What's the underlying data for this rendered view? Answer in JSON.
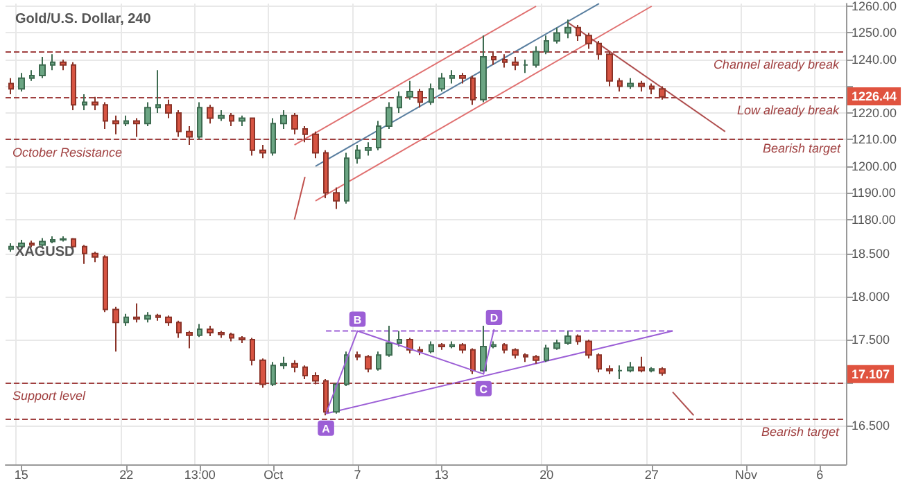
{
  "chart_data": [
    {
      "type": "candlestick",
      "title": "Gold/U.S. Dollar, 240",
      "tick_labels": "y",
      "grid": true,
      "categories": [
        null,
        null,
        null,
        null,
        null,
        null,
        null,
        null,
        null,
        null,
        null,
        null,
        null,
        null,
        null,
        null,
        null,
        null,
        null,
        null,
        null,
        null,
        null,
        null,
        null,
        null,
        null,
        null,
        null,
        null,
        null,
        null,
        null,
        null,
        null,
        null,
        null,
        null,
        null,
        null,
        null,
        null,
        null,
        null,
        null,
        null,
        null,
        null,
        null,
        null,
        null,
        null,
        null,
        null,
        null,
        null,
        null,
        null,
        null,
        null,
        null,
        null,
        null,
        null,
        null,
        null,
        null,
        null,
        null,
        null,
        null,
        null,
        null,
        null,
        null,
        null,
        null,
        null,
        null,
        null
      ],
      "ylim": [
        1175,
        1261
      ],
      "yticks": [
        {
          "value": 1180,
          "label": "1180.00"
        },
        {
          "value": 1190,
          "label": "1190.00"
        },
        {
          "value": 1200,
          "label": "1200.00"
        },
        {
          "value": 1210,
          "label": "1210.00"
        },
        {
          "value": 1220,
          "label": "1220.00"
        },
        {
          "value": 1230,
          "label": null
        },
        {
          "value": 1240,
          "label": "1240.00"
        },
        {
          "value": 1250,
          "label": "1250.00"
        },
        {
          "value": 1260,
          "label": "1260.00"
        }
      ],
      "ohlc": [
        [
          1231,
          1233,
          1227,
          1229
        ],
        [
          1229,
          1235,
          1228,
          1233
        ],
        [
          1233,
          1236,
          1232,
          1234
        ],
        [
          1234,
          1241,
          1233,
          1238
        ],
        [
          1238,
          1242,
          1236,
          1239
        ],
        [
          1239,
          1240,
          1236,
          1238
        ],
        [
          1238,
          1239,
          1221,
          1223
        ],
        [
          1223,
          1227,
          1221,
          1224
        ],
        [
          1224,
          1226,
          1221,
          1223
        ],
        [
          1223,
          1224,
          1214,
          1217
        ],
        [
          1217,
          1219,
          1212,
          1216
        ],
        [
          1216,
          1219,
          1215,
          1217
        ],
        [
          1217,
          1218,
          1211,
          1216
        ],
        [
          1216,
          1224,
          1215,
          1222
        ],
        [
          1222,
          1236,
          1220,
          1223
        ],
        [
          1223,
          1225,
          1218,
          1220
        ],
        [
          1220,
          1221,
          1211,
          1213
        ],
        [
          1213,
          1215,
          1208,
          1211
        ],
        [
          1211,
          1224,
          1210,
          1222
        ],
        [
          1222,
          1223,
          1216,
          1218
        ],
        [
          1218,
          1221,
          1217,
          1219
        ],
        [
          1219,
          1220,
          1215,
          1217
        ],
        [
          1217,
          1219,
          1215,
          1218
        ],
        [
          1218,
          1218,
          1204,
          1206
        ],
        [
          1206,
          1208,
          1203,
          1205
        ],
        [
          1205,
          1218,
          1204,
          1216
        ],
        [
          1216,
          1221,
          1214,
          1219
        ],
        [
          1219,
          1220,
          1212,
          1214
        ],
        [
          1214,
          1215,
          1209,
          1212
        ],
        [
          1212,
          1213,
          1203,
          1205
        ],
        [
          1205,
          1206,
          1188,
          1190
        ],
        [
          1190,
          1192,
          1184,
          1187
        ],
        [
          1187,
          1205,
          1186,
          1203
        ],
        [
          1203,
          1208,
          1201,
          1206
        ],
        [
          1206,
          1209,
          1204,
          1207
        ],
        [
          1207,
          1217,
          1206,
          1215
        ],
        [
          1215,
          1224,
          1214,
          1222
        ],
        [
          1222,
          1228,
          1220,
          1226
        ],
        [
          1226,
          1232,
          1225,
          1228
        ],
        [
          1228,
          1229,
          1222,
          1224
        ],
        [
          1224,
          1231,
          1223,
          1229
        ],
        [
          1229,
          1235,
          1228,
          1233
        ],
        [
          1233,
          1236,
          1231,
          1234
        ],
        [
          1234,
          1235,
          1231,
          1233
        ],
        [
          1233,
          1234,
          1223,
          1225
        ],
        [
          1225,
          1249,
          1224,
          1241
        ],
        [
          1241,
          1243,
          1238,
          1240
        ],
        [
          1240,
          1242,
          1237,
          1239
        ],
        [
          1239,
          1241,
          1236,
          1238
        ],
        [
          1238,
          1240,
          1235,
          1238
        ],
        [
          1238,
          1245,
          1237,
          1243
        ],
        [
          1243,
          1249,
          1242,
          1247
        ],
        [
          1247,
          1252,
          1246,
          1250
        ],
        [
          1250,
          1255,
          1248,
          1252
        ],
        [
          1252,
          1253,
          1247,
          1249
        ],
        [
          1249,
          1250,
          1244,
          1246
        ],
        [
          1246,
          1247,
          1240,
          1242
        ],
        [
          1242,
          1243,
          1230,
          1232
        ],
        [
          1232,
          1233,
          1228,
          1230
        ],
        [
          1230,
          1233,
          1229,
          1231
        ],
        [
          1231,
          1232,
          1228,
          1230
        ],
        [
          1230,
          1231,
          1227,
          1229
        ],
        [
          1229,
          1230,
          1225,
          1226
        ],
        null,
        null,
        null,
        null,
        null,
        null,
        null,
        null,
        null,
        null,
        null,
        null,
        null,
        null,
        null,
        null,
        null
      ],
      "series": [
        {
          "type": "line",
          "color": "#e07070",
          "values": [
            null,
            null,
            null,
            null,
            null,
            null,
            null,
            null,
            null,
            null,
            null,
            null,
            null,
            null,
            null,
            null,
            null,
            null,
            null,
            null,
            null,
            null,
            null,
            null,
            null,
            null,
            null,
            1208,
            null,
            null,
            null,
            null,
            null,
            null,
            null,
            null,
            null,
            null,
            null,
            null,
            null,
            null,
            null,
            null,
            null,
            null,
            null,
            null,
            null,
            null,
            1260,
            null,
            null,
            null,
            null,
            null,
            null,
            null,
            null,
            null,
            null,
            null,
            null,
            null,
            null,
            null,
            null,
            null,
            null,
            null,
            null,
            null,
            null,
            null,
            null,
            null,
            null,
            null,
            null,
            null
          ]
        },
        {
          "type": "line",
          "color": "#e07070",
          "values": [
            null,
            null,
            null,
            null,
            null,
            null,
            null,
            null,
            null,
            null,
            null,
            null,
            null,
            null,
            null,
            null,
            null,
            null,
            null,
            null,
            null,
            null,
            null,
            null,
            null,
            null,
            null,
            null,
            null,
            1187,
            null,
            null,
            null,
            null,
            null,
            null,
            null,
            null,
            null,
            null,
            null,
            null,
            null,
            null,
            null,
            null,
            null,
            null,
            null,
            null,
            null,
            null,
            null,
            null,
            null,
            null,
            null,
            null,
            null,
            null,
            null,
            1260,
            null,
            null,
            null,
            null,
            null,
            null,
            null,
            null,
            null,
            null,
            null,
            null,
            null,
            null,
            null,
            null,
            null,
            null
          ]
        },
        {
          "type": "line",
          "color": "#5a7fa0",
          "values": [
            null,
            null,
            null,
            null,
            null,
            null,
            null,
            null,
            null,
            null,
            null,
            null,
            null,
            null,
            null,
            null,
            null,
            null,
            null,
            null,
            null,
            null,
            null,
            null,
            null,
            null,
            null,
            null,
            null,
            1200,
            null,
            null,
            null,
            null,
            null,
            null,
            null,
            null,
            null,
            null,
            null,
            null,
            null,
            null,
            null,
            null,
            null,
            null,
            null,
            null,
            null,
            null,
            null,
            null,
            null,
            null,
            1261,
            null,
            null,
            null,
            null,
            null,
            null,
            null,
            null,
            null,
            null,
            null,
            null,
            null,
            null,
            null,
            null,
            null,
            null,
            null,
            null,
            null,
            null,
            null
          ]
        },
        {
          "type": "line",
          "color": "#c0504d",
          "values": [
            null,
            null,
            null,
            null,
            null,
            null,
            null,
            null,
            null,
            null,
            null,
            null,
            null,
            null,
            null,
            null,
            null,
            null,
            null,
            null,
            null,
            null,
            null,
            null,
            null,
            null,
            null,
            1180,
            1196,
            null,
            null,
            null,
            null,
            null,
            null,
            null,
            null,
            null,
            null,
            null,
            null,
            null,
            null,
            null,
            null,
            null,
            null,
            null,
            null,
            null,
            null,
            null,
            null,
            null,
            null,
            null,
            null,
            null,
            null,
            null,
            null,
            null,
            null,
            null,
            null,
            null,
            null,
            null,
            null,
            null,
            null,
            null,
            null,
            null,
            null,
            null,
            null,
            null,
            null,
            null
          ]
        },
        {
          "type": "line",
          "color": "#b05050",
          "values": [
            null,
            null,
            null,
            null,
            null,
            null,
            null,
            null,
            null,
            null,
            null,
            null,
            null,
            null,
            null,
            null,
            null,
            null,
            null,
            null,
            null,
            null,
            null,
            null,
            null,
            null,
            null,
            null,
            null,
            null,
            null,
            null,
            null,
            null,
            null,
            null,
            null,
            null,
            null,
            null,
            null,
            null,
            null,
            null,
            null,
            null,
            null,
            null,
            null,
            null,
            null,
            null,
            null,
            1254,
            null,
            null,
            null,
            null,
            null,
            null,
            null,
            null,
            null,
            null,
            null,
            null,
            null,
            null,
            1213,
            null,
            null,
            null,
            null,
            null,
            null,
            null,
            null,
            null,
            null,
            null
          ]
        }
      ],
      "ref_lines": [
        {
          "axis": "y",
          "value": 1210,
          "label": "October Resistance",
          "color": "#a04040",
          "line_style": "dashed"
        },
        {
          "axis": "y",
          "value": 1243,
          "label": "Channel already break",
          "color": "#a04040",
          "line_style": "dashed"
        },
        {
          "axis": "y",
          "value": 1226,
          "label": "Low already break",
          "color": "#a04040",
          "line_style": "dashed"
        }
      ],
      "annotations": [
        {
          "text": "1226.44",
          "y": 1226.44
        },
        {
          "text": "Bearish target",
          "y": 1210
        }
      ]
    },
    {
      "type": "candlestick",
      "title": "XAGUSD",
      "grid": true,
      "categories": [
        null,
        "15",
        null,
        null,
        null,
        null,
        null,
        null,
        null,
        null,
        null,
        "22",
        null,
        null,
        null,
        null,
        null,
        null,
        "13:00",
        null,
        null,
        null,
        null,
        null,
        null,
        "Oct",
        null,
        null,
        null,
        null,
        null,
        null,
        null,
        "7",
        null,
        null,
        null,
        null,
        null,
        null,
        null,
        "13",
        null,
        null,
        null,
        null,
        null,
        null,
        null,
        null,
        null,
        "20",
        null,
        null,
        null,
        null,
        null,
        null,
        null,
        null,
        null,
        "27",
        null,
        null,
        null,
        null,
        null,
        null,
        null,
        null,
        "Nov",
        null,
        null,
        null,
        null,
        null,
        null,
        "6",
        null,
        null
      ],
      "ylim": [
        16.05,
        18.74
      ],
      "yticks": [
        {
          "value": 16.5,
          "label": "16.500"
        },
        {
          "value": 17,
          "label": null
        },
        {
          "value": 17.5,
          "label": "17.500"
        },
        {
          "value": 18,
          "label": "18.000"
        },
        {
          "value": 18.5,
          "label": "18.500"
        }
      ],
      "ohlc": [
        [
          18.55,
          18.62,
          18.52,
          18.58
        ],
        [
          18.58,
          18.66,
          18.56,
          18.62
        ],
        [
          18.62,
          18.65,
          18.57,
          18.6
        ],
        [
          18.6,
          18.68,
          18.58,
          18.64
        ],
        [
          18.64,
          18.7,
          18.62,
          18.66
        ],
        [
          18.66,
          18.7,
          18.64,
          18.67
        ],
        [
          18.67,
          18.68,
          18.54,
          18.58
        ],
        [
          18.58,
          18.6,
          18.38,
          18.5
        ],
        [
          18.5,
          18.52,
          18.4,
          18.46
        ],
        [
          18.46,
          18.48,
          17.82,
          17.85
        ],
        [
          17.85,
          17.88,
          17.36,
          17.7
        ],
        [
          17.7,
          17.8,
          17.66,
          17.76
        ],
        [
          17.76,
          17.92,
          17.7,
          17.74
        ],
        [
          17.74,
          17.82,
          17.7,
          17.78
        ],
        [
          17.78,
          17.8,
          17.72,
          17.76
        ],
        [
          17.76,
          17.78,
          17.66,
          17.7
        ],
        [
          17.7,
          17.72,
          17.52,
          17.58
        ],
        [
          17.58,
          17.6,
          17.4,
          17.55
        ],
        [
          17.55,
          17.68,
          17.53,
          17.62
        ],
        [
          17.62,
          17.66,
          17.54,
          17.58
        ],
        [
          17.58,
          17.6,
          17.52,
          17.56
        ],
        [
          17.56,
          17.58,
          17.48,
          17.52
        ],
        [
          17.52,
          17.54,
          17.46,
          17.5
        ],
        [
          17.5,
          17.52,
          17.2,
          17.26
        ],
        [
          17.26,
          17.28,
          16.94,
          16.98
        ],
        [
          16.98,
          17.24,
          16.96,
          17.2
        ],
        [
          17.2,
          17.3,
          17.16,
          17.22
        ],
        [
          17.22,
          17.26,
          17.12,
          17.18
        ],
        [
          17.18,
          17.2,
          17.04,
          17.08
        ],
        [
          17.08,
          17.12,
          16.98,
          17.02
        ],
        [
          17.02,
          17.04,
          16.62,
          16.66
        ],
        [
          16.66,
          17.0,
          16.64,
          16.98
        ],
        [
          16.98,
          17.36,
          16.96,
          17.32
        ],
        [
          17.32,
          17.36,
          17.26,
          17.3
        ],
        [
          17.3,
          17.32,
          17.12,
          17.16
        ],
        [
          17.16,
          17.36,
          17.14,
          17.32
        ],
        [
          17.32,
          17.66,
          17.3,
          17.46
        ],
        [
          17.46,
          17.6,
          17.42,
          17.5
        ],
        [
          17.5,
          17.52,
          17.34,
          17.38
        ],
        [
          17.38,
          17.42,
          17.32,
          17.36
        ],
        [
          17.36,
          17.48,
          17.34,
          17.44
        ],
        [
          17.44,
          17.46,
          17.38,
          17.42
        ],
        [
          17.42,
          17.48,
          17.4,
          17.44
        ],
        [
          17.44,
          17.46,
          17.34,
          17.38
        ],
        [
          17.38,
          17.4,
          17.1,
          17.14
        ],
        [
          17.14,
          17.66,
          17.12,
          17.42
        ],
        [
          17.42,
          17.48,
          17.4,
          17.44
        ],
        [
          17.44,
          17.46,
          17.34,
          17.38
        ],
        [
          17.38,
          17.4,
          17.28,
          17.32
        ],
        [
          17.32,
          17.34,
          17.24,
          17.3
        ],
        [
          17.3,
          17.32,
          17.22,
          17.26
        ],
        [
          17.26,
          17.44,
          17.24,
          17.4
        ],
        [
          17.4,
          17.5,
          17.38,
          17.46
        ],
        [
          17.46,
          17.6,
          17.44,
          17.54
        ],
        [
          17.54,
          17.56,
          17.44,
          17.48
        ],
        [
          17.48,
          17.5,
          17.28,
          17.32
        ],
        [
          17.32,
          17.34,
          17.12,
          17.16
        ],
        [
          17.16,
          17.2,
          17.1,
          17.14
        ],
        [
          17.14,
          17.2,
          17.04,
          17.14
        ],
        [
          17.14,
          17.24,
          17.12,
          17.18
        ],
        [
          17.18,
          17.3,
          17.12,
          17.14
        ],
        [
          17.14,
          17.18,
          17.12,
          17.16
        ],
        [
          17.16,
          17.18,
          17.08,
          17.11
        ],
        null,
        null,
        null,
        null,
        null,
        null,
        null,
        null,
        null,
        null,
        null,
        null,
        null,
        null,
        null,
        null,
        null
      ],
      "series": [
        {
          "type": "line",
          "color": "#9c5fd6",
          "line_style": "dashed",
          "values": [
            null,
            null,
            null,
            null,
            null,
            null,
            null,
            null,
            null,
            null,
            null,
            null,
            null,
            null,
            null,
            null,
            null,
            null,
            null,
            null,
            null,
            null,
            null,
            null,
            null,
            null,
            null,
            null,
            null,
            null,
            17.6,
            null,
            null,
            null,
            null,
            null,
            null,
            null,
            null,
            null,
            null,
            null,
            null,
            null,
            null,
            null,
            null,
            null,
            null,
            null,
            null,
            null,
            null,
            null,
            null,
            null,
            null,
            null,
            null,
            null,
            null,
            null,
            null,
            17.6,
            null,
            null,
            null,
            null,
            null,
            null,
            null,
            null,
            null,
            null,
            null,
            null,
            null,
            null,
            null,
            null
          ]
        },
        {
          "type": "line",
          "color": "#9c5fd6",
          "values": [
            null,
            null,
            null,
            null,
            null,
            null,
            null,
            null,
            null,
            null,
            null,
            null,
            null,
            null,
            null,
            null,
            null,
            null,
            null,
            null,
            null,
            null,
            null,
            null,
            null,
            null,
            null,
            null,
            null,
            null,
            16.64,
            null,
            null,
            null,
            null,
            null,
            null,
            null,
            null,
            null,
            null,
            null,
            null,
            null,
            null,
            null,
            null,
            null,
            null,
            null,
            null,
            null,
            null,
            null,
            null,
            null,
            null,
            null,
            null,
            null,
            null,
            null,
            null,
            17.6,
            null,
            null,
            null,
            null,
            null,
            null,
            null,
            null,
            null,
            null,
            null,
            null,
            null,
            null,
            null,
            null
          ]
        },
        {
          "type": "line",
          "color": "#9c5fd6",
          "values": [
            null,
            null,
            null,
            null,
            null,
            null,
            null,
            null,
            null,
            null,
            null,
            null,
            null,
            null,
            null,
            null,
            null,
            null,
            null,
            null,
            null,
            null,
            null,
            null,
            null,
            null,
            null,
            null,
            null,
            null,
            16.64,
            null,
            null,
            17.6,
            null,
            null,
            null,
            null,
            null,
            null,
            null,
            null,
            null,
            null,
            null,
            17.1,
            17.62,
            null,
            null,
            null,
            null,
            null,
            null,
            null,
            null,
            null,
            null,
            null,
            null,
            null,
            null,
            null,
            null,
            null,
            null,
            null,
            null,
            null,
            null,
            null,
            null,
            null,
            null,
            null,
            null,
            null,
            null,
            null,
            null,
            null
          ],
          "value_labels": [
            null,
            null,
            null,
            null,
            null,
            null,
            null,
            null,
            null,
            null,
            null,
            null,
            null,
            null,
            null,
            null,
            null,
            null,
            null,
            null,
            null,
            null,
            null,
            null,
            null,
            null,
            null,
            null,
            null,
            null,
            "A",
            null,
            null,
            "B",
            null,
            null,
            null,
            null,
            null,
            null,
            null,
            null,
            null,
            null,
            null,
            "C",
            "D",
            null,
            null,
            null,
            null,
            null,
            null,
            null,
            null,
            null,
            null,
            null,
            null,
            null,
            null,
            null,
            null,
            null,
            null,
            null,
            null,
            null,
            null,
            null,
            null,
            null,
            null,
            null,
            null,
            null,
            null,
            null,
            null,
            null
          ]
        },
        {
          "type": "line",
          "color": "#b05050",
          "values": [
            null,
            null,
            null,
            null,
            null,
            null,
            null,
            null,
            null,
            null,
            null,
            null,
            null,
            null,
            null,
            null,
            null,
            null,
            null,
            null,
            null,
            null,
            null,
            null,
            null,
            null,
            null,
            null,
            null,
            null,
            null,
            null,
            null,
            null,
            null,
            null,
            null,
            null,
            null,
            null,
            null,
            null,
            null,
            null,
            null,
            null,
            null,
            null,
            null,
            null,
            null,
            null,
            null,
            null,
            null,
            null,
            null,
            null,
            null,
            null,
            null,
            null,
            null,
            16.89,
            null,
            16.62,
            null,
            null,
            null,
            null,
            null,
            null,
            null,
            null,
            null,
            null,
            null,
            null,
            null,
            null
          ]
        }
      ],
      "ref_lines": [
        {
          "axis": "y",
          "value": 17.0,
          "label": "Support level",
          "color": "#a04040",
          "line_style": "dashed"
        },
        {
          "axis": "y",
          "value": 16.58,
          "label": "Bearish target",
          "color": "#a04040",
          "line_style": "dashed"
        }
      ],
      "annotations": [
        {
          "text": "17.107",
          "y": 17.107
        }
      ]
    }
  ]
}
